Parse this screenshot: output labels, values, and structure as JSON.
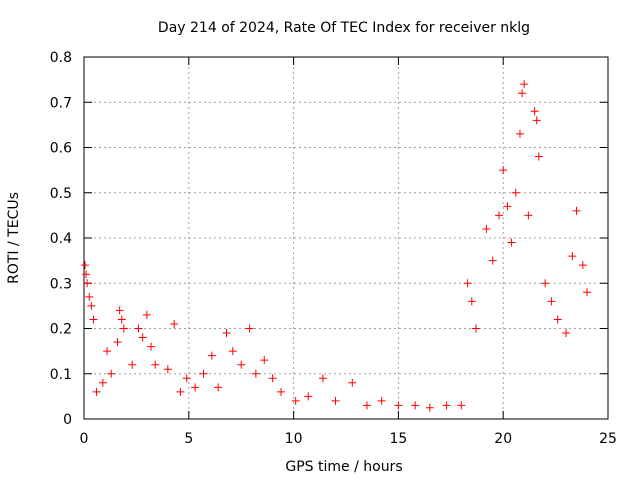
{
  "chart_data": {
    "type": "scatter",
    "title": "Day 214 of 2024, Rate Of TEC Index for receiver nklg",
    "xlabel": "GPS time / hours",
    "ylabel": "ROTI / TECUs",
    "xlim": [
      0,
      25
    ],
    "ylim": [
      0,
      0.8
    ],
    "xticks": [
      0,
      5,
      10,
      15,
      20,
      25
    ],
    "yticks": [
      0,
      0.1,
      0.2,
      0.3,
      0.4,
      0.5,
      0.6,
      0.7,
      0.8
    ],
    "xtick_labels": [
      "0",
      "5",
      "10",
      "15",
      "20",
      "25"
    ],
    "ytick_labels": [
      "0",
      "0.1",
      "0.2",
      "0.3",
      "0.4",
      "0.5",
      "0.6",
      "0.7",
      "0.8"
    ],
    "grid": true,
    "marker": "+",
    "marker_color": "#ff0000",
    "series": [
      {
        "name": "ROTI",
        "points": [
          [
            0.05,
            0.34
          ],
          [
            0.1,
            0.32
          ],
          [
            0.15,
            0.3
          ],
          [
            0.25,
            0.27
          ],
          [
            0.35,
            0.25
          ],
          [
            0.45,
            0.22
          ],
          [
            0.6,
            0.06
          ],
          [
            0.9,
            0.08
          ],
          [
            1.1,
            0.15
          ],
          [
            1.3,
            0.1
          ],
          [
            1.6,
            0.17
          ],
          [
            1.7,
            0.24
          ],
          [
            1.8,
            0.22
          ],
          [
            1.9,
            0.2
          ],
          [
            2.3,
            0.12
          ],
          [
            2.6,
            0.2
          ],
          [
            2.8,
            0.18
          ],
          [
            3.0,
            0.23
          ],
          [
            3.2,
            0.16
          ],
          [
            3.4,
            0.12
          ],
          [
            4.0,
            0.11
          ],
          [
            4.3,
            0.21
          ],
          [
            4.6,
            0.06
          ],
          [
            4.9,
            0.09
          ],
          [
            5.3,
            0.07
          ],
          [
            5.7,
            0.1
          ],
          [
            6.1,
            0.14
          ],
          [
            6.4,
            0.07
          ],
          [
            6.8,
            0.19
          ],
          [
            7.1,
            0.15
          ],
          [
            7.5,
            0.12
          ],
          [
            7.9,
            0.2
          ],
          [
            8.2,
            0.1
          ],
          [
            8.6,
            0.13
          ],
          [
            9.0,
            0.09
          ],
          [
            9.4,
            0.06
          ],
          [
            10.1,
            0.04
          ],
          [
            10.7,
            0.05
          ],
          [
            11.4,
            0.09
          ],
          [
            12.0,
            0.04
          ],
          [
            12.8,
            0.08
          ],
          [
            13.5,
            0.03
          ],
          [
            14.2,
            0.04
          ],
          [
            15.0,
            0.03
          ],
          [
            15.8,
            0.03
          ],
          [
            16.5,
            0.025
          ],
          [
            17.3,
            0.03
          ],
          [
            18.0,
            0.03
          ],
          [
            18.3,
            0.3
          ],
          [
            18.5,
            0.26
          ],
          [
            18.7,
            0.2
          ],
          [
            19.2,
            0.42
          ],
          [
            19.5,
            0.35
          ],
          [
            19.8,
            0.45
          ],
          [
            20.0,
            0.55
          ],
          [
            20.2,
            0.47
          ],
          [
            20.4,
            0.39
          ],
          [
            20.6,
            0.5
          ],
          [
            20.8,
            0.63
          ],
          [
            20.9,
            0.72
          ],
          [
            21.0,
            0.74
          ],
          [
            21.2,
            0.45
          ],
          [
            21.5,
            0.68
          ],
          [
            21.6,
            0.66
          ],
          [
            21.7,
            0.58
          ],
          [
            22.0,
            0.3
          ],
          [
            22.3,
            0.26
          ],
          [
            22.6,
            0.22
          ],
          [
            23.0,
            0.19
          ],
          [
            23.3,
            0.36
          ],
          [
            23.5,
            0.46
          ],
          [
            23.8,
            0.34
          ],
          [
            24.0,
            0.28
          ]
        ]
      }
    ]
  }
}
